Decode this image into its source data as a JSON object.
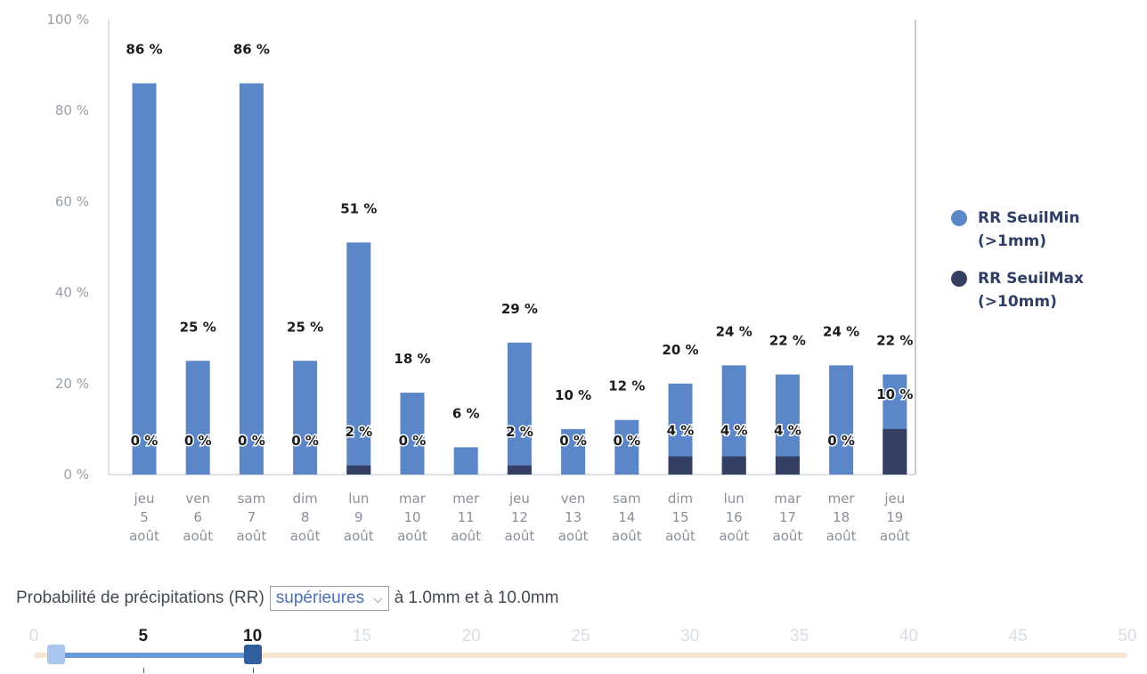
{
  "chart_data": {
    "type": "bar",
    "categories": [
      [
        "jeu",
        "5",
        "août"
      ],
      [
        "ven",
        "6",
        "août"
      ],
      [
        "sam",
        "7",
        "août"
      ],
      [
        "dim",
        "8",
        "août"
      ],
      [
        "lun",
        "9",
        "août"
      ],
      [
        "mar",
        "10",
        "août"
      ],
      [
        "mer",
        "11",
        "août"
      ],
      [
        "jeu",
        "12",
        "août"
      ],
      [
        "ven",
        "13",
        "août"
      ],
      [
        "sam",
        "14",
        "août"
      ],
      [
        "dim",
        "15",
        "août"
      ],
      [
        "lun",
        "16",
        "août"
      ],
      [
        "mar",
        "17",
        "août"
      ],
      [
        "mer",
        "18",
        "août"
      ],
      [
        "jeu",
        "19",
        "août"
      ]
    ],
    "series": [
      {
        "name": "RR SeuilMin\n(>1mm)",
        "values": [
          86,
          25,
          86,
          25,
          51,
          18,
          6,
          29,
          10,
          12,
          20,
          24,
          22,
          24,
          22
        ],
        "color": "#5b87c9"
      },
      {
        "name": "RR SeuilMax\n(>10mm)",
        "values": [
          0,
          0,
          0,
          0,
          2,
          0,
          null,
          2,
          0,
          0,
          4,
          4,
          4,
          0,
          10
        ],
        "color": "#353f64"
      }
    ],
    "value_labels_min": [
      "86 %",
      "25 %",
      "86 %",
      "25 %",
      "51 %",
      "18 %",
      "6 %",
      "29 %",
      "10 %",
      "12 %",
      "20 %",
      "24 %",
      "22 %",
      "24 %",
      "22 %"
    ],
    "value_labels_max": [
      "0 %",
      "0 %",
      "0 %",
      "0 %",
      "2 %",
      "0 %",
      "",
      "2 %",
      "0 %",
      "0 %",
      "4 %",
      "4 %",
      "4 %",
      "0 %",
      "10 %"
    ],
    "y_ticks": [
      "0 %",
      "20 %",
      "40 %",
      "60 %",
      "80 %",
      "100 %"
    ],
    "ylim": [
      0,
      100
    ],
    "grid": false,
    "legend_position": "right"
  },
  "controls": {
    "label": "Probabilité de précipitations (RR)",
    "select_value": "supérieures",
    "suffix": "à 1.0mm et à 10.0mm"
  },
  "slider": {
    "min": 0,
    "max": 50,
    "low": 1,
    "high": 10,
    "ticks": [
      "0",
      "5",
      "10",
      "15",
      "20",
      "25",
      "30",
      "35",
      "40",
      "45",
      "50"
    ],
    "bold_ticks": [
      "5",
      "10"
    ],
    "fill_color": "#6a98d6",
    "track_color": "#f6e6d2"
  }
}
